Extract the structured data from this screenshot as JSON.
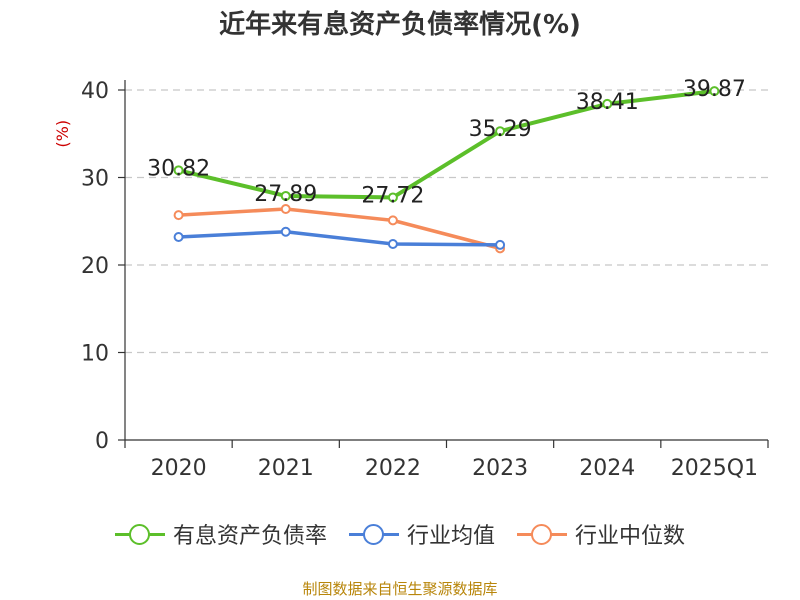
{
  "chart_data": {
    "type": "line",
    "title": "近年来有息资产负债率情况(%)",
    "ylabel": "(%)",
    "xlabel": "",
    "ylim": [
      0,
      40
    ],
    "yticks": [
      0,
      10,
      20,
      30,
      40
    ],
    "categories": [
      "2020",
      "2021",
      "2022",
      "2023",
      "2024",
      "2025Q1"
    ],
    "series": [
      {
        "name": "有息资产负债率",
        "color": "#5cbf2a",
        "values": [
          30.82,
          27.89,
          27.72,
          35.29,
          38.41,
          39.87
        ],
        "labels": [
          "30.82",
          "27.89",
          "27.72",
          "35.29",
          "38.41",
          "39.87"
        ]
      },
      {
        "name": "行业均值",
        "color": "#4a7fd8",
        "values": [
          23.2,
          23.8,
          22.4,
          22.3,
          null,
          null
        ]
      },
      {
        "name": "行业中位数",
        "color": "#f58b5a",
        "values": [
          25.7,
          26.4,
          25.1,
          21.9,
          null,
          null
        ]
      }
    ],
    "grid": true,
    "legend": "bottom"
  },
  "source": "制图数据来自恒生聚源数据库"
}
